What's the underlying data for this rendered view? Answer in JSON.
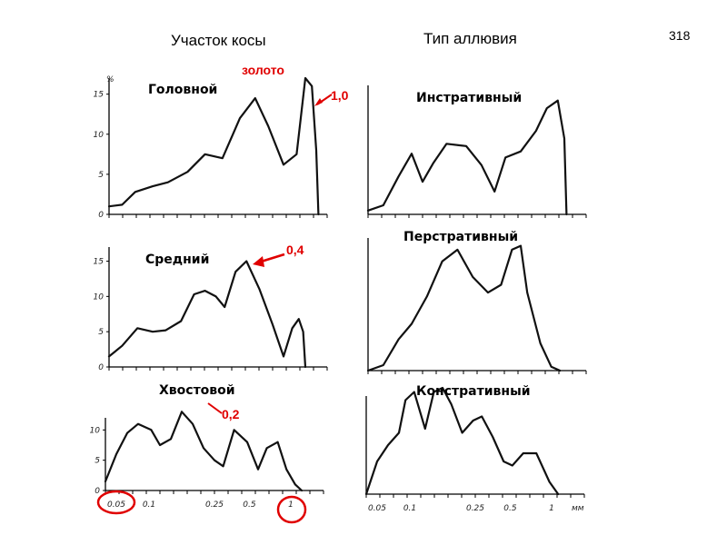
{
  "headers": {
    "section": "Участок косы",
    "alluvium_type": "Тип аллювия",
    "page_number": "318"
  },
  "ylabel": "%",
  "xunit": "мм",
  "annotations": {
    "gold": "золото",
    "head_value": "1,0",
    "middle_value": "0,4",
    "tail_value": "0,2"
  },
  "colors": {
    "curve": "#111111",
    "annotation": "#e00000"
  },
  "chart_data": [
    {
      "type": "line",
      "title": "Головной",
      "ylim": [
        0,
        17
      ],
      "yticks": [
        "0",
        "5",
        "10",
        "15"
      ],
      "x": [
        0,
        0.06,
        0.12,
        0.2,
        0.27,
        0.36,
        0.44,
        0.52,
        0.6,
        0.67,
        0.73,
        0.8,
        0.86,
        0.9,
        0.93,
        0.95,
        0.96
      ],
      "y": [
        1,
        1.2,
        2.8,
        3.5,
        4.0,
        5.3,
        7.5,
        7.0,
        12,
        14.5,
        11,
        6.2,
        7.5,
        17,
        16,
        8,
        0
      ]
    },
    {
      "type": "line",
      "title": "Инстративный",
      "ylim": [
        0,
        17
      ],
      "x": [
        0,
        0.07,
        0.14,
        0.2,
        0.25,
        0.3,
        0.36,
        0.45,
        0.52,
        0.58,
        0.63,
        0.7,
        0.77,
        0.82,
        0.87,
        0.9,
        0.91
      ],
      "y": [
        0.5,
        1.2,
        5,
        8,
        4.3,
        6.8,
        9.3,
        9.0,
        6.5,
        3.0,
        7.5,
        8.3,
        11,
        14,
        15,
        10,
        0
      ]
    },
    {
      "type": "line",
      "title": "Средний",
      "ylim": [
        0,
        17
      ],
      "yticks": [
        "0",
        "5",
        "10",
        "15"
      ],
      "x": [
        0,
        0.06,
        0.13,
        0.2,
        0.26,
        0.33,
        0.39,
        0.44,
        0.49,
        0.53,
        0.58,
        0.63,
        0.69,
        0.75,
        0.8,
        0.84,
        0.87,
        0.89,
        0.9
      ],
      "y": [
        1.5,
        3,
        5.5,
        5,
        5.2,
        6.5,
        10.3,
        10.8,
        10,
        8.5,
        13.5,
        15,
        11,
        6,
        1.5,
        5.5,
        6.8,
        5,
        0
      ]
    },
    {
      "type": "line",
      "title": "Перстративный",
      "ylim": [
        0,
        17
      ],
      "x": [
        0,
        0.07,
        0.14,
        0.2,
        0.27,
        0.34,
        0.41,
        0.48,
        0.55,
        0.61,
        0.66,
        0.7,
        0.73,
        0.79,
        0.84,
        0.88
      ],
      "y": [
        0,
        0.7,
        4,
        6,
        9.5,
        14,
        15.5,
        12,
        10,
        11,
        15.5,
        16,
        10,
        3.5,
        0.5,
        0
      ]
    },
    {
      "type": "line",
      "title": "Хвостовой",
      "ylim": [
        0,
        12
      ],
      "yticks": [
        "0",
        "5",
        "10"
      ],
      "x": [
        0,
        0.05,
        0.1,
        0.15,
        0.21,
        0.25,
        0.3,
        0.35,
        0.4,
        0.45,
        0.5,
        0.54,
        0.59,
        0.65,
        0.7,
        0.74,
        0.79,
        0.83,
        0.87,
        0.9
      ],
      "y": [
        1.5,
        6,
        9.5,
        11,
        10,
        7.5,
        8.5,
        13,
        11,
        7,
        5,
        4,
        10,
        8,
        3.5,
        7,
        8,
        3.5,
        1,
        0
      ]
    },
    {
      "type": "line",
      "title": "Констративный",
      "ylim": [
        0,
        12
      ],
      "x": [
        0,
        0.05,
        0.1,
        0.15,
        0.18,
        0.22,
        0.27,
        0.31,
        0.35,
        0.39,
        0.44,
        0.49,
        0.53,
        0.58,
        0.63,
        0.67,
        0.72,
        0.78,
        0.84,
        0.88
      ],
      "y": [
        0,
        4,
        6,
        7.5,
        11.5,
        12.5,
        8,
        12.5,
        13,
        11,
        7.5,
        9,
        9.5,
        7,
        4,
        3.5,
        5,
        5,
        1.5,
        0
      ]
    }
  ],
  "x_tick_labels": [
    "0.05",
    "0.1",
    "0.25",
    "0.5",
    "1"
  ]
}
